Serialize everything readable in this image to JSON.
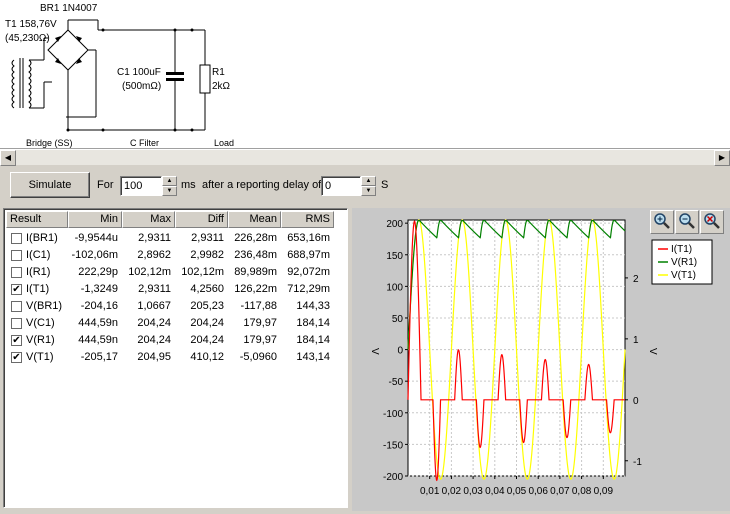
{
  "schematic": {
    "bridge_label": "BR1 1N4007",
    "transformer_label": "T1 158,76V",
    "transformer_imp": "(45,230Ω)",
    "cap_label": "C1 100uF",
    "cap_esr": "(500mΩ)",
    "res_label": "R1",
    "res_value": "2kΩ",
    "section_bridge": "Bridge (SS)",
    "section_filter": "C Filter",
    "section_load": "Load"
  },
  "toolbar": {
    "simulate_label": "Simulate",
    "for_label": "For",
    "duration_value": "100",
    "ms_label": "ms",
    "delay_label": "after a reporting delay of",
    "delay_value": "0",
    "s_label": "S"
  },
  "table": {
    "headers": [
      "Result",
      "Min",
      "Max",
      "Diff",
      "Mean",
      "RMS"
    ],
    "rows": [
      {
        "name": "I(BR1)",
        "checked": false,
        "min": "-9,9544u",
        "max": "2,9311",
        "diff": "2,9311",
        "mean": "226,28m",
        "rms": "653,16m"
      },
      {
        "name": "I(C1)",
        "checked": false,
        "min": "-102,06m",
        "max": "2,8962",
        "diff": "2,9982",
        "mean": "236,48m",
        "rms": "688,97m"
      },
      {
        "name": "I(R1)",
        "checked": false,
        "min": "222,29p",
        "max": "102,12m",
        "diff": "102,12m",
        "mean": "89,989m",
        "rms": "92,072m"
      },
      {
        "name": "I(T1)",
        "checked": true,
        "min": "-1,3249",
        "max": "2,9311",
        "diff": "4,2560",
        "mean": "126,22m",
        "rms": "712,29m"
      },
      {
        "name": "V(BR1)",
        "checked": false,
        "min": "-204,16",
        "max": "1,0667",
        "diff": "205,23",
        "mean": "-117,88",
        "rms": "144,33"
      },
      {
        "name": "V(C1)",
        "checked": false,
        "min": "444,59n",
        "max": "204,24",
        "diff": "204,24",
        "mean": "179,97",
        "rms": "184,14"
      },
      {
        "name": "V(R1)",
        "checked": true,
        "min": "444,59n",
        "max": "204,24",
        "diff": "204,24",
        "mean": "179,97",
        "rms": "184,14"
      },
      {
        "name": "V(T1)",
        "checked": true,
        "min": "-205,17",
        "max": "204,95",
        "diff": "410,12",
        "mean": "-5,0960",
        "rms": "143,14"
      }
    ]
  },
  "plot": {
    "zoom_icons": [
      "zoom-in-icon",
      "zoom-out-icon",
      "zoom-reset-icon"
    ],
    "left_axis_label": "V",
    "right_axis_label": "V",
    "left_ticks": [
      "200",
      "150",
      "100",
      "50",
      "0",
      "-50",
      "-100",
      "-150",
      "-200"
    ],
    "right_ticks": [
      "2",
      "1",
      "0",
      "-1"
    ],
    "x_ticks": [
      "0,01",
      "0,02",
      "0,03",
      "0,04",
      "0,05",
      "0,06",
      "0,07",
      "0,08",
      "0,09"
    ],
    "legend": [
      {
        "name": "I(T1)",
        "color": "#ff0000"
      },
      {
        "name": "V(R1)",
        "color": "#008000"
      },
      {
        "name": "V(T1)",
        "color": "#ffff00"
      }
    ]
  },
  "chart_data": {
    "type": "line",
    "x_range": [
      0,
      0.1
    ],
    "ylim_left": [
      -200,
      205
    ],
    "ylim_right": [
      -1.25,
      2.95
    ],
    "frequency_hz": 50,
    "series": [
      {
        "name": "V(T1)",
        "axis": "left",
        "color": "#ffff00",
        "amplitude": 205
      },
      {
        "name": "V(R1)",
        "axis": "left",
        "color": "#008000",
        "start": 145,
        "peak": 204
      },
      {
        "name": "I(T1)",
        "axis": "right",
        "color": "#ff0000",
        "peak": 2.93,
        "min": -1.32
      }
    ]
  }
}
